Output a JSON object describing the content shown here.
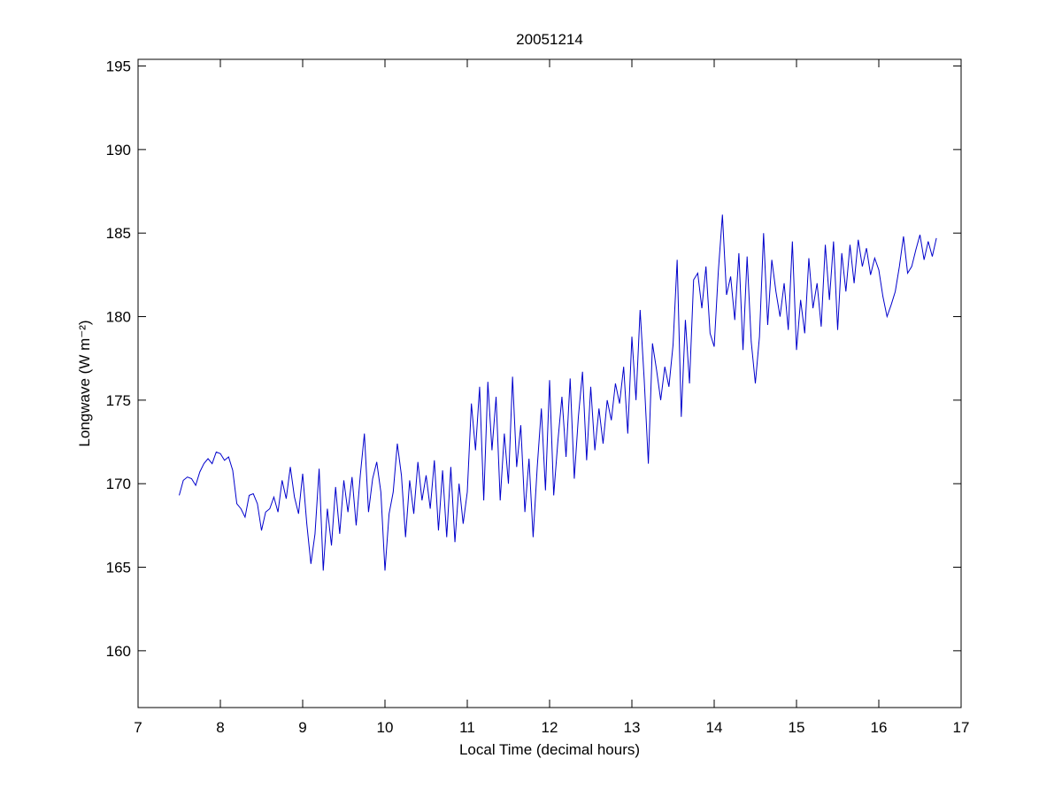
{
  "chart_data": {
    "type": "line",
    "title": "20051214",
    "x_label": "Local Time (decimal hours)",
    "y_label": "Longwave (W m⁻²)",
    "color": "#0000cc",
    "xlim": [
      7,
      17
    ],
    "xticks": [
      7,
      8,
      9,
      10,
      11,
      12,
      13,
      14,
      15,
      16,
      17
    ],
    "ylim": [
      156.6,
      195.4
    ],
    "yticks": [
      160,
      165,
      170,
      175,
      180,
      185,
      190,
      195
    ],
    "x": [
      7.5,
      7.55,
      7.6,
      7.65,
      7.7,
      7.75,
      7.8,
      7.85,
      7.9,
      7.95,
      8,
      8.05,
      8.1,
      8.15,
      8.2,
      8.25,
      8.3,
      8.35,
      8.4,
      8.45,
      8.5,
      8.55,
      8.6,
      8.65,
      8.7,
      8.75,
      8.8,
      8.85,
      8.9,
      8.95,
      9,
      9.05,
      9.1,
      9.15,
      9.2,
      9.25,
      9.3,
      9.35,
      9.4,
      9.45,
      9.5,
      9.55,
      9.6,
      9.65,
      9.7,
      9.75,
      9.8,
      9.85,
      9.9,
      9.95,
      10,
      10.05,
      10.1,
      10.15,
      10.2,
      10.25,
      10.3,
      10.35,
      10.4,
      10.45,
      10.5,
      10.55,
      10.6,
      10.65,
      10.7,
      10.75,
      10.8,
      10.85,
      10.9,
      10.95,
      11,
      11.05,
      11.1,
      11.15,
      11.2,
      11.25,
      11.3,
      11.35,
      11.4,
      11.45,
      11.5,
      11.55,
      11.6,
      11.65,
      11.7,
      11.75,
      11.8,
      11.85,
      11.9,
      11.95,
      12,
      12.05,
      12.1,
      12.15,
      12.2,
      12.25,
      12.3,
      12.35,
      12.4,
      12.45,
      12.5,
      12.55,
      12.6,
      12.65,
      12.7,
      12.75,
      12.8,
      12.85,
      12.9,
      12.95,
      13,
      13.05,
      13.1,
      13.15,
      13.2,
      13.25,
      13.3,
      13.35,
      13.4,
      13.45,
      13.5,
      13.55,
      13.6,
      13.65,
      13.7,
      13.75,
      13.8,
      13.85,
      13.9,
      13.95,
      14,
      14.05,
      14.1,
      14.15,
      14.2,
      14.25,
      14.3,
      14.35,
      14.4,
      14.45,
      14.5,
      14.55,
      14.6,
      14.65,
      14.7,
      14.75,
      14.8,
      14.85,
      14.9,
      14.95,
      15,
      15.05,
      15.1,
      15.15,
      15.2,
      15.25,
      15.3,
      15.35,
      15.4,
      15.45,
      15.5,
      15.55,
      15.6,
      15.65,
      15.7,
      15.75,
      15.8,
      15.85,
      15.9,
      15.95,
      16,
      16.05,
      16.1,
      16.15,
      16.2,
      16.25,
      16.3,
      16.35,
      16.4,
      16.45,
      16.5,
      16.55,
      16.6,
      16.65,
      16.7
    ],
    "values": [
      169.3,
      170.2,
      170.4,
      170.3,
      169.9,
      170.7,
      171.2,
      171.5,
      171.2,
      171.9,
      171.8,
      171.4,
      171.6,
      170.8,
      168.8,
      168.5,
      168.0,
      169.3,
      169.4,
      168.8,
      167.2,
      168.3,
      168.5,
      169.2,
      168.3,
      170.2,
      169.1,
      171.0,
      169.2,
      168.2,
      170.6,
      167.6,
      165.2,
      167.0,
      170.9,
      164.8,
      168.5,
      166.3,
      169.8,
      167.0,
      170.2,
      168.3,
      170.4,
      167.5,
      170.5,
      173.0,
      168.3,
      170.3,
      171.3,
      169.5,
      164.8,
      168.2,
      169.5,
      172.4,
      170.5,
      166.8,
      170.2,
      168.2,
      171.3,
      169.0,
      170.5,
      168.5,
      171.4,
      167.2,
      170.8,
      166.8,
      171.0,
      166.5,
      170.0,
      167.6,
      169.5,
      174.8,
      172.0,
      175.8,
      169.0,
      176.1,
      172.0,
      175.2,
      169.0,
      173.0,
      170.0,
      176.4,
      171.0,
      173.5,
      168.3,
      171.5,
      166.8,
      171.0,
      174.5,
      169.6,
      176.2,
      169.3,
      172.5,
      175.2,
      171.6,
      176.3,
      170.3,
      174.0,
      176.7,
      171.4,
      175.8,
      172.0,
      174.5,
      172.4,
      175.0,
      173.8,
      176.0,
      174.8,
      177.0,
      173.0,
      178.8,
      175.0,
      180.4,
      176.2,
      171.2,
      178.4,
      176.8,
      175.0,
      177.0,
      175.8,
      178.3,
      183.4,
      174.0,
      179.8,
      176.0,
      182.2,
      182.6,
      180.5,
      183.0,
      179.0,
      178.2,
      182.7,
      186.1,
      181.3,
      182.4,
      179.8,
      183.8,
      178.0,
      183.6,
      178.5,
      176.0,
      178.8,
      185.0,
      179.5,
      183.4,
      181.5,
      180.0,
      182.0,
      179.2,
      184.5,
      178.0,
      181.0,
      179.0,
      183.5,
      180.5,
      182.0,
      179.4,
      184.3,
      181.0,
      184.5,
      179.2,
      183.8,
      181.5,
      184.3,
      182.0,
      184.6,
      183.0,
      184.1,
      182.5,
      183.5,
      182.8,
      181.2,
      180.0,
      180.7,
      181.5,
      183.0,
      184.8,
      182.6,
      183.0,
      184.0,
      184.9,
      183.4,
      184.5,
      183.6,
      184.7
    ]
  }
}
